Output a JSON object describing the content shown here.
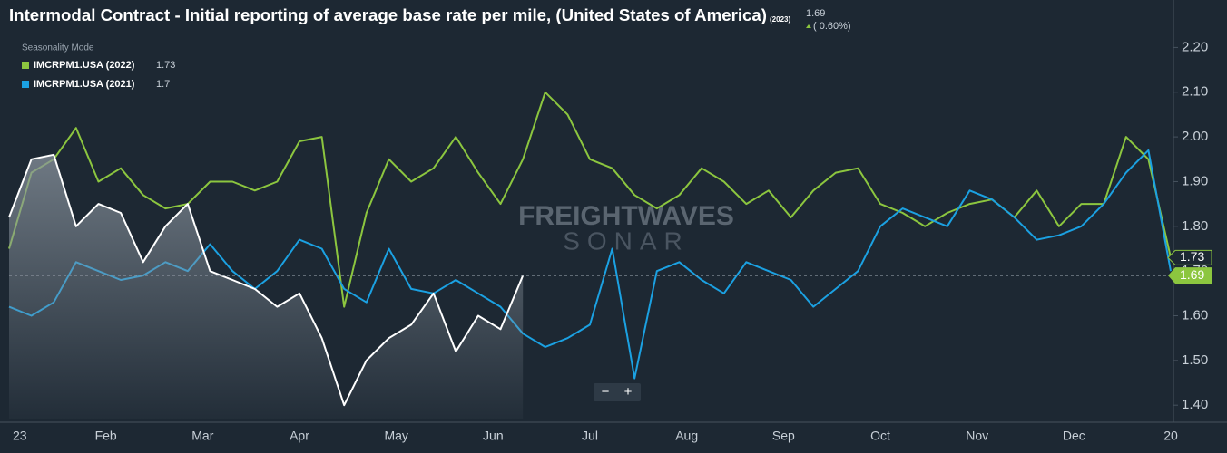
{
  "chart_data": {
    "type": "line",
    "title": "Intermodal Contract - Initial reporting of average base rate per mile, (United States of America)",
    "current_value": 1.69,
    "change": "( 0.60%)",
    "legend_title": "Seasonality Mode",
    "watermark": [
      "FREIGHTWAVES",
      "SONAR"
    ],
    "zoom": [
      "−",
      "+"
    ],
    "xlabels": [
      "23",
      "Feb",
      "Mar",
      "Apr",
      "May",
      "Jun",
      "Jul",
      "Aug",
      "Sep",
      "Oct",
      "Nov",
      "Dec",
      "20"
    ],
    "ylim": [
      1.37,
      2.29
    ],
    "yticks": [
      {
        "value": 1.4,
        "label": "1.40"
      },
      {
        "value": 1.5,
        "label": "1.50"
      },
      {
        "value": 1.6,
        "label": "1.60"
      },
      {
        "value": 1.7,
        "label": "1.70"
      },
      {
        "value": 1.8,
        "label": "1.80"
      },
      {
        "value": 1.9,
        "label": "1.90"
      },
      {
        "value": 2.0,
        "label": "2.00"
      },
      {
        "value": 2.1,
        "label": "2.10"
      },
      {
        "value": 2.2,
        "label": "2.20"
      }
    ],
    "series": [
      {
        "name": "(2023)",
        "color": "#ffffff",
        "area": true,
        "values": [
          1.82,
          1.95,
          1.96,
          1.8,
          1.85,
          1.83,
          1.72,
          1.8,
          1.85,
          1.7,
          1.68,
          1.66,
          1.62,
          1.65,
          1.55,
          1.4,
          1.5,
          1.55,
          1.58,
          1.65,
          1.52,
          1.6,
          1.57,
          1.69,
          null,
          null,
          null,
          null,
          null,
          null,
          null,
          null,
          null,
          null,
          null,
          null,
          null,
          null,
          null,
          null,
          null,
          null,
          null,
          null,
          null,
          null,
          null,
          null,
          null,
          null,
          null,
          null,
          null
        ]
      },
      {
        "name": "IMCRPM1.USA (2022)",
        "color": "#8cc63f",
        "last": 1.73,
        "values": [
          1.75,
          1.92,
          1.95,
          2.02,
          1.9,
          1.93,
          1.87,
          1.84,
          1.85,
          1.9,
          1.9,
          1.88,
          1.9,
          1.99,
          2.0,
          1.62,
          1.83,
          1.95,
          1.9,
          1.93,
          2.0,
          1.92,
          1.85,
          1.95,
          2.1,
          2.05,
          1.95,
          1.93,
          1.87,
          1.84,
          1.87,
          1.93,
          1.9,
          1.85,
          1.88,
          1.82,
          1.88,
          1.92,
          1.93,
          1.85,
          1.83,
          1.8,
          1.83,
          1.85,
          1.86,
          1.82,
          1.88,
          1.8,
          1.85,
          1.85,
          2.0,
          1.95,
          1.73
        ]
      },
      {
        "name": "IMCRPM1.USA (2021)",
        "color": "#1ba1e2",
        "last": 1.7,
        "values": [
          1.62,
          1.6,
          1.63,
          1.72,
          1.7,
          1.68,
          1.69,
          1.72,
          1.7,
          1.76,
          1.7,
          1.66,
          1.7,
          1.77,
          1.75,
          1.66,
          1.63,
          1.75,
          1.66,
          1.65,
          1.68,
          1.65,
          1.62,
          1.56,
          1.53,
          1.55,
          1.58,
          1.75,
          1.46,
          1.7,
          1.72,
          1.68,
          1.65,
          1.72,
          1.7,
          1.68,
          1.62,
          1.66,
          1.7,
          1.8,
          1.84,
          1.82,
          1.8,
          1.88,
          1.86,
          1.82,
          1.77,
          1.78,
          1.8,
          1.85,
          1.92,
          1.97,
          1.7
        ]
      }
    ]
  }
}
